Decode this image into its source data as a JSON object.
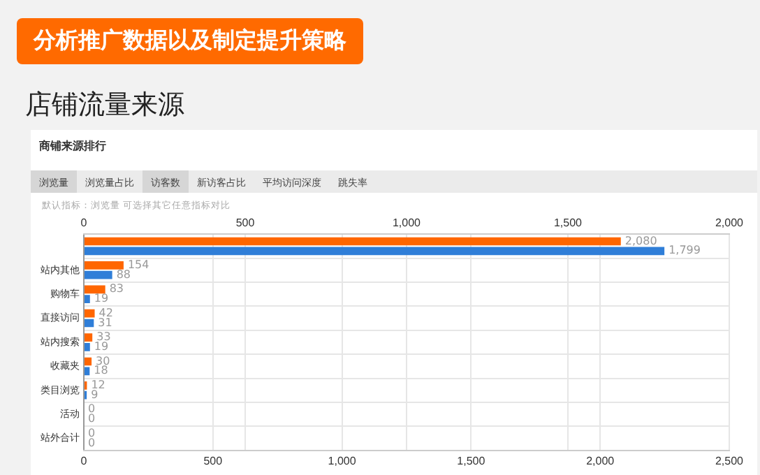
{
  "chart_data": {
    "type": "bar",
    "orientation": "horizontal",
    "title": "分析推广数据以及制定提升策略",
    "subtitle": "店铺流量来源",
    "annotations": [
      "商铺来源排行",
      "浏览量",
      "浏览量占比",
      "访客数",
      "新访客占比",
      "平均访问深度",
      "跳失率",
      "默认指标：浏览量 可选择其它任意指标对比"
    ],
    "categories": [
      null,
      "站内其他",
      "购物车",
      "直接访问",
      "站内搜索",
      "收藏夹",
      "类目浏览",
      "活动",
      "站外合计"
    ],
    "series": [
      {
        "color": "#ff6600",
        "values": [
          2080,
          154,
          83,
          42,
          33,
          30,
          12,
          0,
          0
        ],
        "value_labels": [
          "2,080",
          "154",
          "83",
          "42",
          "33",
          "30",
          "12",
          "0",
          "0"
        ]
      },
      {
        "color": "#2f7ed8",
        "axis": "x2",
        "values": [
          1799,
          88,
          19,
          31,
          19,
          18,
          9,
          0,
          0
        ],
        "value_labels": [
          "1,799",
          "88",
          "19",
          "31",
          "19",
          "18",
          "9",
          "0",
          "0"
        ]
      }
    ],
    "xlim": [
      0,
      2500
    ],
    "xticks": [
      0,
      500,
      {
        "value": 1000,
        "label": "1,000"
      },
      {
        "value": 1500,
        "label": "1,500"
      },
      {
        "value": 2000,
        "label": "2,000"
      },
      {
        "value": 2500,
        "label": "2,500"
      }
    ],
    "x2lim": [
      0,
      2000
    ],
    "x2ticks": [
      0,
      500,
      {
        "value": 1000,
        "label": "1,000"
      },
      {
        "value": 1500,
        "label": "1,500"
      },
      {
        "value": 2000,
        "label": "2,000"
      }
    ],
    "grid": true,
    "legend": false
  }
}
